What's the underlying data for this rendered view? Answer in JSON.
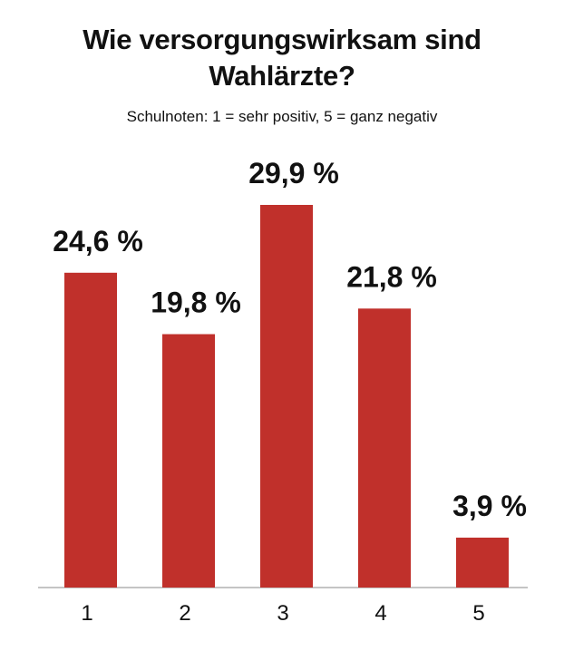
{
  "chart_data": {
    "type": "bar",
    "title": "Wie versorgungswirksam sind Wahlärzte?",
    "subtitle": "Schulnoten: 1 = sehr positiv, 5 = ganz negativ",
    "xlabel": "",
    "ylabel": "",
    "categories": [
      "1",
      "2",
      "3",
      "4",
      "5"
    ],
    "values": [
      24.6,
      19.8,
      29.9,
      21.8,
      3.9
    ],
    "value_labels": [
      "24,6 %",
      "19,8 %",
      "29,9 %",
      "21,8 %",
      "3,9 %"
    ],
    "unit": "%",
    "ylim": [
      0,
      29.9
    ],
    "grid": false,
    "legend": "none",
    "bar_color": "#c0302b",
    "axis_color": "#b0b0b0"
  }
}
